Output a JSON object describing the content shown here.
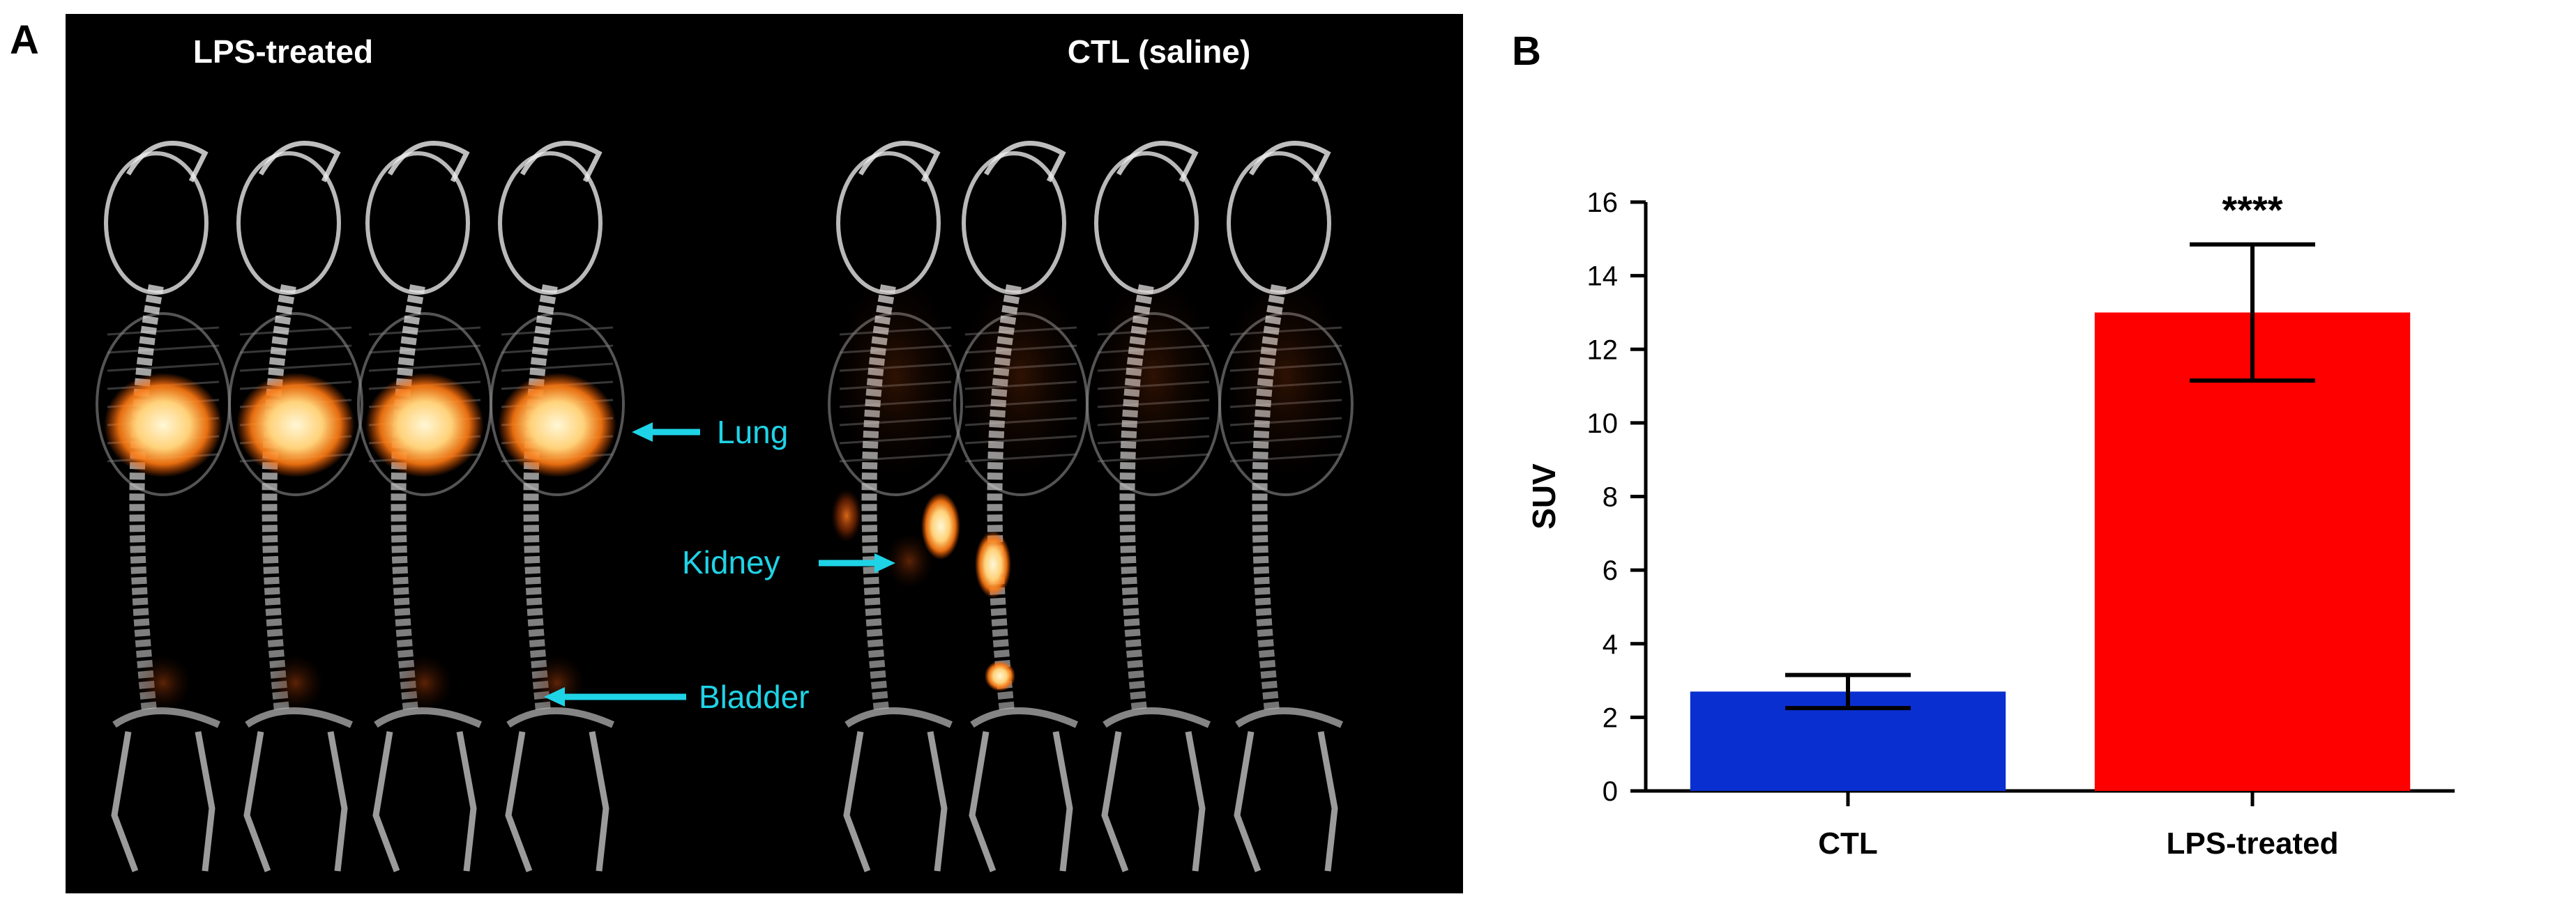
{
  "panel_a": {
    "letter": "A",
    "group_labels": [
      "LPS-treated",
      "CTL (saline)"
    ],
    "annotations": [
      {
        "label": "Lung",
        "color": "#1fd3e6"
      },
      {
        "label": "Kidney",
        "color": "#1fd3e6"
      },
      {
        "label": "Bladder",
        "color": "#1fd3e6"
      }
    ],
    "mice_per_group": 4,
    "background_color": "#000000",
    "signal_color": "#ff8a1a"
  },
  "panel_b": {
    "letter": "B"
  },
  "chart_data": {
    "type": "bar",
    "categories": [
      "CTL",
      "LPS-treated"
    ],
    "values": [
      2.7,
      13.0
    ],
    "errors": [
      0.45,
      1.85
    ],
    "colors": [
      "#0a2fd0",
      "#ff0000"
    ],
    "ylabel": "SUV",
    "xlabel": "",
    "ylim": [
      0,
      16
    ],
    "yticks": [
      0,
      2,
      4,
      6,
      8,
      10,
      12,
      14,
      16
    ],
    "significance": [
      {
        "category": "LPS-treated",
        "label": "****"
      }
    ],
    "grid": false
  }
}
